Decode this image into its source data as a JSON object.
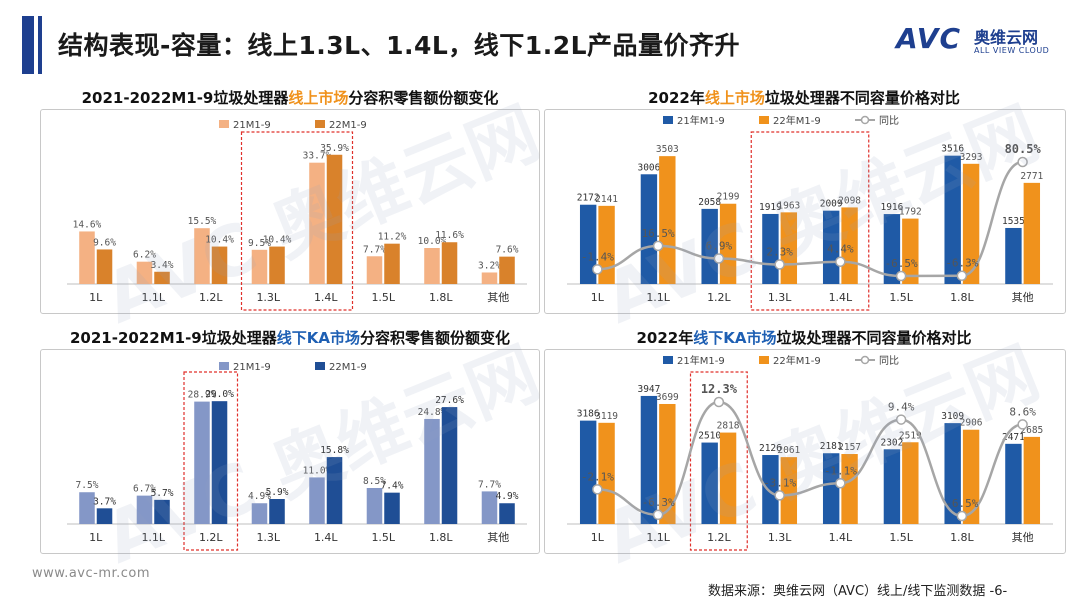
{
  "header": {
    "title": "结构表现-容量：线上1.3L、1.4L，线下1.2L产品量价齐升",
    "logo_mark": "AVC",
    "logo_cn": "奥维云网",
    "logo_en": "ALL VIEW CLOUD",
    "brand_color": "#1e3f8f"
  },
  "watermark": "AVC 奥维云网",
  "footer": {
    "url": "www.avc-mr.com",
    "source": "数据来源：奥维云网（AVC）线上/线下监测数据 -6-"
  },
  "chart_data": [
    {
      "id": "tl",
      "type": "bar",
      "title_parts": [
        "2021-2022M1-9垃圾处理器",
        "线上市场",
        "分容积零售额份额变化"
      ],
      "categories": [
        "1L",
        "1.1L",
        "1.2L",
        "1.3L",
        "1.4L",
        "1.5L",
        "1.8L",
        "其他"
      ],
      "series": [
        {
          "name": "21M1-9",
          "color": "#f4b183",
          "values": [
            14.6,
            6.2,
            15.5,
            9.5,
            33.7,
            7.7,
            10.0,
            3.2
          ]
        },
        {
          "name": "22M1-9",
          "color": "#d9822b",
          "values": [
            9.6,
            3.4,
            10.4,
            10.4,
            35.9,
            11.2,
            11.6,
            7.6
          ]
        }
      ],
      "value_suffix": "%",
      "ylim": [
        0,
        40
      ],
      "highlight": [
        3,
        4
      ]
    },
    {
      "id": "tr",
      "type": "bar+line",
      "title_parts": [
        "2022年",
        "线上市场",
        "垃圾处理器不同容量价格对比"
      ],
      "categories": [
        "1L",
        "1.1L",
        "1.2L",
        "1.3L",
        "1.4L",
        "1.5L",
        "1.8L",
        "其他"
      ],
      "series": [
        {
          "name": "21年M1-9",
          "color": "#1f5aa6",
          "values": [
            2172,
            3006,
            2058,
            1919,
            2009,
            1916,
            3516,
            1535
          ]
        },
        {
          "name": "22年M1-9",
          "color": "#f0921c",
          "values": [
            2141,
            3503,
            2199,
            1963,
            2098,
            1792,
            3293,
            2771
          ]
        }
      ],
      "line": {
        "name": "同比",
        "color": "#a6a6a6",
        "values": [
          -1.4,
          16.5,
          6.9,
          2.3,
          4.4,
          -6.5,
          -6.3,
          80.5
        ],
        "labels": [
          "-1.4%",
          "16.5%",
          "6.9%",
          "2.3%",
          "4.4%",
          "-6.5%",
          "-6.3%",
          "80.5%"
        ]
      },
      "ylim": [
        0,
        4000
      ],
      "highlight": [
        3,
        4
      ]
    },
    {
      "id": "bl",
      "type": "bar",
      "title_parts": [
        "2021-2022M1-9垃圾处理器",
        "线下KA市场",
        "分容积零售额份额变化"
      ],
      "categories": [
        "1L",
        "1.1L",
        "1.2L",
        "1.3L",
        "1.4L",
        "1.5L",
        "1.8L",
        "其他"
      ],
      "series": [
        {
          "name": "21M1-9",
          "color": "#8497c7",
          "values": [
            7.5,
            6.7,
            28.9,
            4.9,
            11.0,
            8.5,
            24.8,
            7.7
          ]
        },
        {
          "name": "22M1-9",
          "color": "#1f4e95",
          "values": [
            3.7,
            5.7,
            29.0,
            5.9,
            15.8,
            7.4,
            27.6,
            4.9
          ]
        }
      ],
      "value_suffix": "%",
      "ylim": [
        0,
        34
      ],
      "highlight": [
        2
      ]
    },
    {
      "id": "br",
      "type": "bar+line",
      "title_parts": [
        "2022年",
        "线下KA市场",
        "垃圾处理器不同容量价格对比"
      ],
      "categories": [
        "1L",
        "1.1L",
        "1.2L",
        "1.3L",
        "1.4L",
        "1.5L",
        "1.8L",
        "其他"
      ],
      "series": [
        {
          "name": "21年M1-9",
          "color": "#1f5aa6",
          "values": [
            3186,
            3947,
            2510,
            2126,
            2181,
            2302,
            3109,
            2471
          ]
        },
        {
          "name": "22年M1-9",
          "color": "#f0921c",
          "values": [
            3119,
            3699,
            2818,
            2061,
            2157,
            2519,
            2906,
            2685
          ]
        }
      ],
      "line": {
        "name": "同比",
        "color": "#a6a6a6",
        "values": [
          -2.1,
          -6.3,
          12.3,
          -3.1,
          -1.1,
          9.4,
          -6.5,
          8.6
        ],
        "labels": [
          "-2.1%",
          "-6.3%",
          "12.3%",
          "-3.1%",
          "-1.1%",
          "9.4%",
          "-6.5%",
          "8.6%"
        ]
      },
      "ylim": [
        0,
        4500
      ],
      "highlight": [
        2
      ]
    }
  ]
}
